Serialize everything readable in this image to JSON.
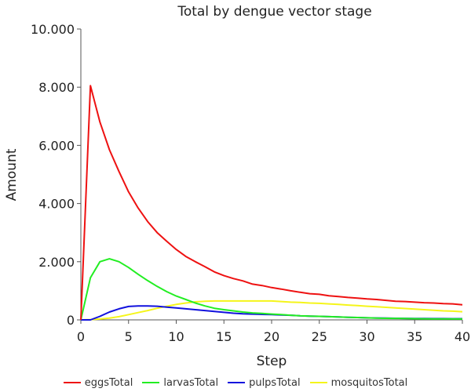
{
  "chart_data": {
    "type": "line",
    "title": "Total by dengue vector stage",
    "xlabel": "Step",
    "ylabel": "Amount",
    "xlim": [
      0,
      40
    ],
    "ylim": [
      0,
      10000
    ],
    "x_ticks": [
      0,
      5,
      10,
      15,
      20,
      25,
      30,
      35,
      40
    ],
    "x_tick_labels": [
      "0",
      "5",
      "10",
      "15",
      "20",
      "25",
      "30",
      "35",
      "40"
    ],
    "y_ticks": [
      0,
      2000,
      4000,
      6000,
      8000,
      10000
    ],
    "y_tick_labels": [
      "0",
      "2.000",
      "4.000",
      "6.000",
      "8.000",
      "10.000"
    ],
    "grid": false,
    "legend_position": "bottom",
    "x": [
      0,
      1,
      2,
      3,
      4,
      5,
      6,
      7,
      8,
      9,
      10,
      11,
      12,
      13,
      14,
      15,
      16,
      17,
      18,
      19,
      20,
      21,
      22,
      23,
      24,
      25,
      26,
      27,
      28,
      29,
      30,
      31,
      32,
      33,
      34,
      35,
      36,
      37,
      38,
      39,
      40
    ],
    "series": [
      {
        "name": "eggsTotal",
        "color": "#ee1111",
        "values": [
          0,
          8050,
          6800,
          5850,
          5100,
          4400,
          3850,
          3380,
          3000,
          2700,
          2420,
          2180,
          2000,
          1830,
          1650,
          1520,
          1420,
          1340,
          1230,
          1180,
          1110,
          1060,
          1000,
          950,
          900,
          880,
          830,
          800,
          770,
          750,
          720,
          700,
          670,
          640,
          630,
          610,
          590,
          580,
          560,
          550,
          520
        ]
      },
      {
        "name": "larvasTotal",
        "color": "#22ee22",
        "values": [
          0,
          1450,
          2000,
          2100,
          2000,
          1800,
          1570,
          1350,
          1150,
          970,
          820,
          700,
          580,
          480,
          400,
          350,
          310,
          270,
          240,
          220,
          200,
          180,
          160,
          140,
          130,
          120,
          110,
          100,
          90,
          80,
          70,
          60,
          55,
          50,
          45,
          40,
          38,
          36,
          34,
          32,
          30
        ]
      },
      {
        "name": "pulpsTotal",
        "color": "#1111dd",
        "values": [
          0,
          0,
          120,
          270,
          380,
          460,
          480,
          480,
          470,
          440,
          410,
          380,
          350,
          320,
          290,
          260,
          230,
          210,
          200,
          190,
          180,
          170,
          160,
          140,
          130,
          120,
          110,
          100,
          90,
          80,
          70,
          65,
          60,
          55,
          50,
          48,
          46,
          44,
          42,
          40,
          40
        ]
      },
      {
        "name": "mosquitosTotal",
        "color": "#f5f51a",
        "values": [
          0,
          10,
          30,
          60,
          110,
          180,
          250,
          320,
          400,
          470,
          530,
          580,
          620,
          640,
          650,
          650,
          650,
          650,
          650,
          650,
          650,
          630,
          610,
          600,
          580,
          570,
          550,
          530,
          510,
          490,
          470,
          450,
          430,
          410,
          390,
          370,
          350,
          330,
          310,
          300,
          280
        ]
      }
    ]
  }
}
